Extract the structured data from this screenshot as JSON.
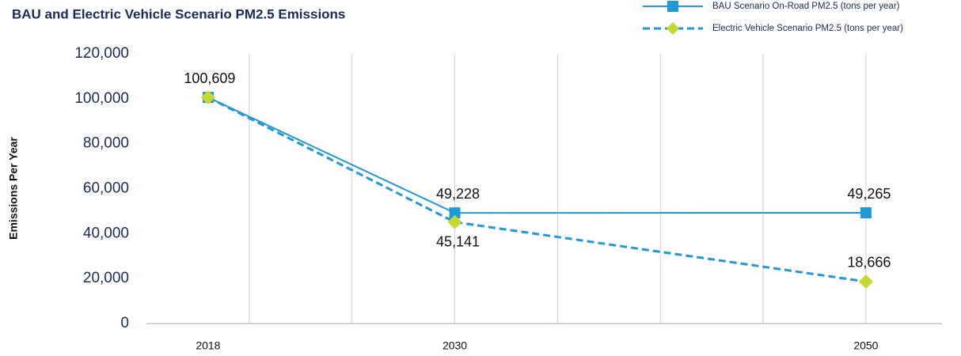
{
  "chart_data": {
    "type": "line",
    "title": "BAU and Electric Vehicle Scenario PM2.5 Emissions",
    "y_label": "Emissions Per Year",
    "x": [
      2018,
      2030,
      2050
    ],
    "series": [
      {
        "name": "BAU Scenario On-Road PM2.5 (tons per year)",
        "color": "#1f9ad6",
        "marker_color": "#1f9ad6",
        "marker": "square",
        "dash": false,
        "values": [
          100609,
          49228,
          49265
        ],
        "value_labels": [
          "100,609",
          "49,228",
          "49,265"
        ]
      },
      {
        "name": "Electric Vehicle Scenario PM2.5 (tons per year)",
        "color": "#1f9ad6",
        "marker_color": "#c5d82e",
        "marker": "diamond",
        "dash": true,
        "values": [
          100609,
          45141,
          18666
        ],
        "value_labels": [
          null,
          "45,141",
          "18,666"
        ]
      }
    ],
    "xlim": [
      2015,
      2053.7
    ],
    "xticks": [
      2018,
      2030,
      2050
    ],
    "xgrid": [
      2020,
      2025,
      2030,
      2035,
      2040,
      2045,
      2050
    ],
    "ylim": [
      0,
      120000
    ],
    "yticks": [
      0,
      {
        "value": 20000,
        "label": "20,000"
      },
      {
        "value": 40000,
        "label": "40,000"
      },
      {
        "value": 60000,
        "label": "60,000"
      },
      {
        "value": 80000,
        "label": "80,000"
      },
      {
        "value": 100000,
        "label": "100,000"
      },
      {
        "value": 120000,
        "label": "120,000"
      }
    ],
    "legend": "top-right"
  }
}
